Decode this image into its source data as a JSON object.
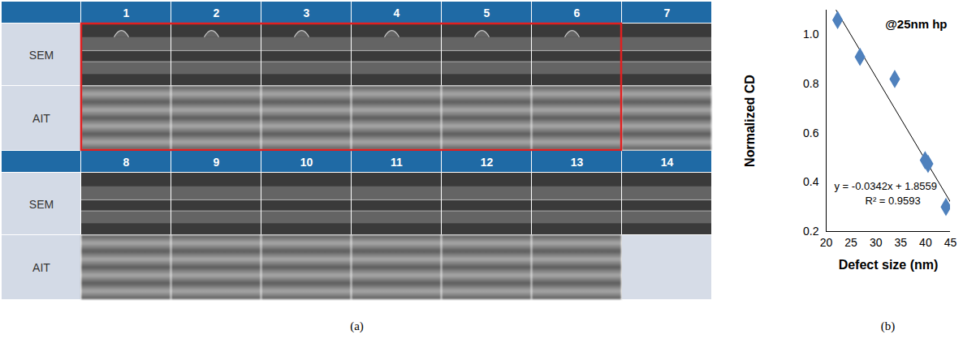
{
  "table": {
    "blocks": [
      {
        "numbers": [
          "1",
          "2",
          "3",
          "4",
          "5",
          "6",
          "7"
        ]
      },
      {
        "numbers": [
          "8",
          "9",
          "10",
          "11",
          "12",
          "13",
          "14"
        ]
      }
    ],
    "row_labels": [
      "SEM",
      "AIT"
    ],
    "highlighted": [
      "1",
      "2",
      "3",
      "4",
      "5",
      "6"
    ],
    "empty_cells": [
      {
        "number": "14",
        "row": "AIT"
      }
    ]
  },
  "chart_data": {
    "type": "scatter",
    "xlabel": "Defect size (nm)",
    "ylabel": "Normalized CD",
    "x": [
      22.3,
      26.8,
      33.8,
      39.9,
      40.5,
      44.1
    ],
    "values": [
      1.06,
      0.91,
      0.82,
      0.49,
      0.475,
      0.3
    ],
    "color": "#4f81bd",
    "marker": "diamond",
    "trendline": {
      "x": [
        22,
        45
      ],
      "values": [
        1.1,
        0.32
      ],
      "color": "#000000"
    },
    "annotations": [
      "@25nm hp",
      "y = -0.0342x + 1.8559",
      "R² = 0.9593"
    ],
    "xlim": [
      20,
      45
    ],
    "xticks": [
      20,
      25,
      30,
      35,
      40,
      45
    ],
    "ylim": [
      0.2,
      1.1
    ],
    "yticks": [
      0.2,
      0.4,
      0.6,
      0.8,
      {
        "value": 1,
        "label": "1.0"
      }
    ],
    "grid": false
  },
  "captions": [
    "(a)",
    "(b)"
  ]
}
